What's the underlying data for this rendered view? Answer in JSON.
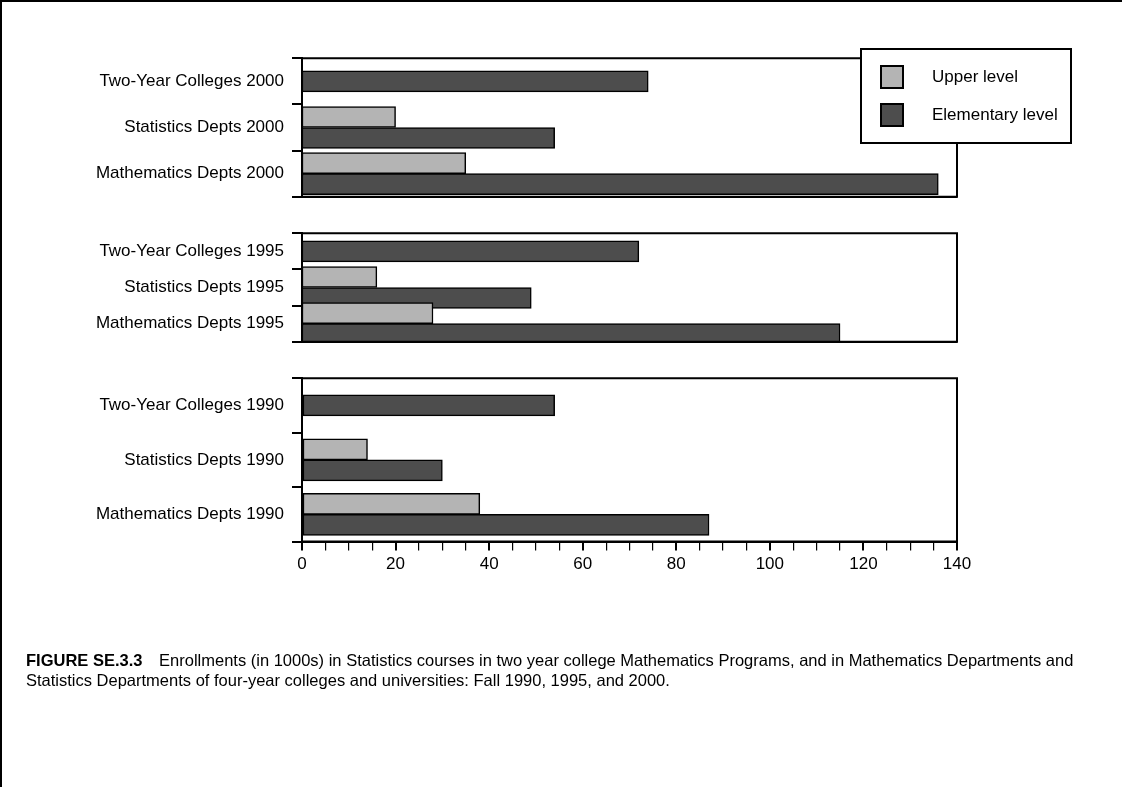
{
  "chart_data": [
    {
      "type": "bar",
      "orientation": "horizontal",
      "categories": [
        "Two-Year Colleges 2000",
        "Statistics Depts 2000",
        "Mathematics Depts 2000"
      ],
      "series": [
        {
          "name": "Upper level",
          "color": "#b4b4b4",
          "values": [
            null,
            20,
            35
          ]
        },
        {
          "name": "Elementary level",
          "color": "#4d4d4d",
          "values": [
            74,
            54,
            136
          ]
        }
      ],
      "xlim": [
        0,
        140
      ],
      "tick_labels": "y",
      "legend": "top right"
    },
    {
      "type": "bar",
      "orientation": "horizontal",
      "categories": [
        "Two-Year Colleges 1995",
        "Statistics Depts 1995",
        "Mathematics Depts 1995"
      ],
      "series": [
        {
          "color": "#b4b4b4",
          "values": [
            null,
            16,
            28
          ]
        },
        {
          "color": "#4d4d4d",
          "values": [
            72,
            49,
            115
          ]
        }
      ],
      "xlim": [
        0,
        140
      ],
      "tick_labels": "y"
    },
    {
      "type": "bar",
      "orientation": "horizontal",
      "categories": [
        "Two-Year Colleges 1990",
        "Statistics Depts 1990",
        "Mathematics Depts 1990"
      ],
      "series": [
        {
          "color": "#b4b4b4",
          "values": [
            null,
            14,
            38
          ]
        },
        {
          "color": "#4d4d4d",
          "values": [
            54,
            30,
            87
          ]
        }
      ],
      "xlim": [
        0,
        140
      ],
      "xticks": [
        0,
        {
          "value": 5,
          "label": null
        },
        {
          "value": 10,
          "label": null
        },
        {
          "value": 15,
          "label": null
        },
        20,
        {
          "value": 25,
          "label": null
        },
        {
          "value": 30,
          "label": null
        },
        {
          "value": 35,
          "label": null
        },
        40,
        {
          "value": 45,
          "label": null
        },
        {
          "value": 50,
          "label": null
        },
        {
          "value": 55,
          "label": null
        },
        60,
        {
          "value": 65,
          "label": null
        },
        {
          "value": 70,
          "label": null
        },
        {
          "value": 75,
          "label": null
        },
        80,
        {
          "value": 85,
          "label": null
        },
        {
          "value": 90,
          "label": null
        },
        {
          "value": 95,
          "label": null
        },
        100,
        {
          "value": 105,
          "label": null
        },
        {
          "value": 110,
          "label": null
        },
        {
          "value": 115,
          "label": null
        },
        120,
        {
          "value": 125,
          "label": null
        },
        {
          "value": 130,
          "label": null
        },
        {
          "value": 135,
          "label": null
        },
        140
      ],
      "annotations": [
        "FIGURE SE.3.3",
        "Enrollments (in 1000s) in Statistics courses in two year college Mathematics Programs, and in Mathematics Departments and Statistics Departments of four-year colleges and universities: Fall 1990, 1995, and 2000."
      ]
    }
  ]
}
